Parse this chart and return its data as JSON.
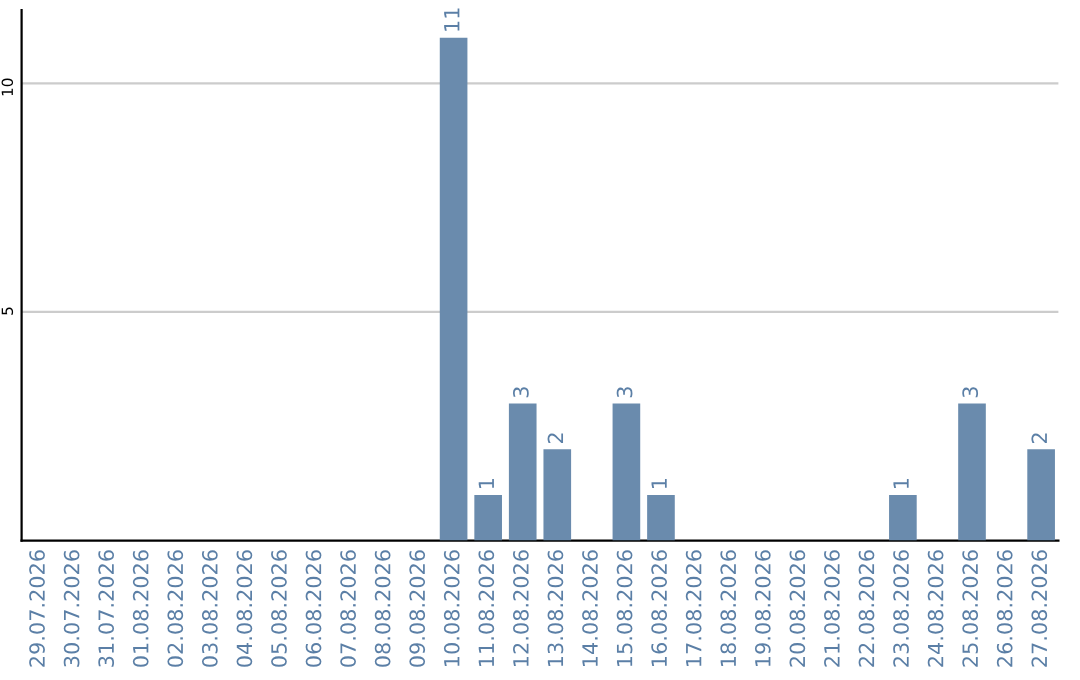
{
  "chart_data": {
    "type": "bar",
    "categories": [
      "29.07.2026",
      "30.07.2026",
      "31.07.2026",
      "01.08.2026",
      "02.08.2026",
      "03.08.2026",
      "04.08.2026",
      "05.08.2026",
      "06.08.2026",
      "07.08.2026",
      "08.08.2026",
      "09.08.2026",
      "10.08.2026",
      "11.08.2026",
      "12.08.2026",
      "13.08.2026",
      "14.08.2026",
      "15.08.2026",
      "16.08.2026",
      "17.08.2026",
      "18.08.2026",
      "19.08.2026",
      "20.08.2026",
      "21.08.2026",
      "22.08.2026",
      "23.08.2026",
      "24.08.2026",
      "25.08.2026",
      "26.08.2026",
      "27.08.2026"
    ],
    "values": [
      0,
      0,
      0,
      0,
      0,
      0,
      0,
      0,
      0,
      0,
      0,
      0,
      11,
      1,
      3,
      2,
      0,
      3,
      1,
      0,
      0,
      0,
      0,
      0,
      0,
      1,
      0,
      3,
      0,
      2
    ],
    "value_labels": [
      null,
      null,
      null,
      null,
      null,
      null,
      null,
      null,
      null,
      null,
      null,
      null,
      "11",
      "1",
      "3",
      "2",
      null,
      "3",
      "1",
      null,
      null,
      null,
      null,
      null,
      null,
      "1",
      null,
      "3",
      null,
      "2"
    ],
    "color": "#6a8bad",
    "ylim": [
      0,
      11.6
    ],
    "yticks": [
      5,
      10
    ],
    "grid": "y"
  }
}
